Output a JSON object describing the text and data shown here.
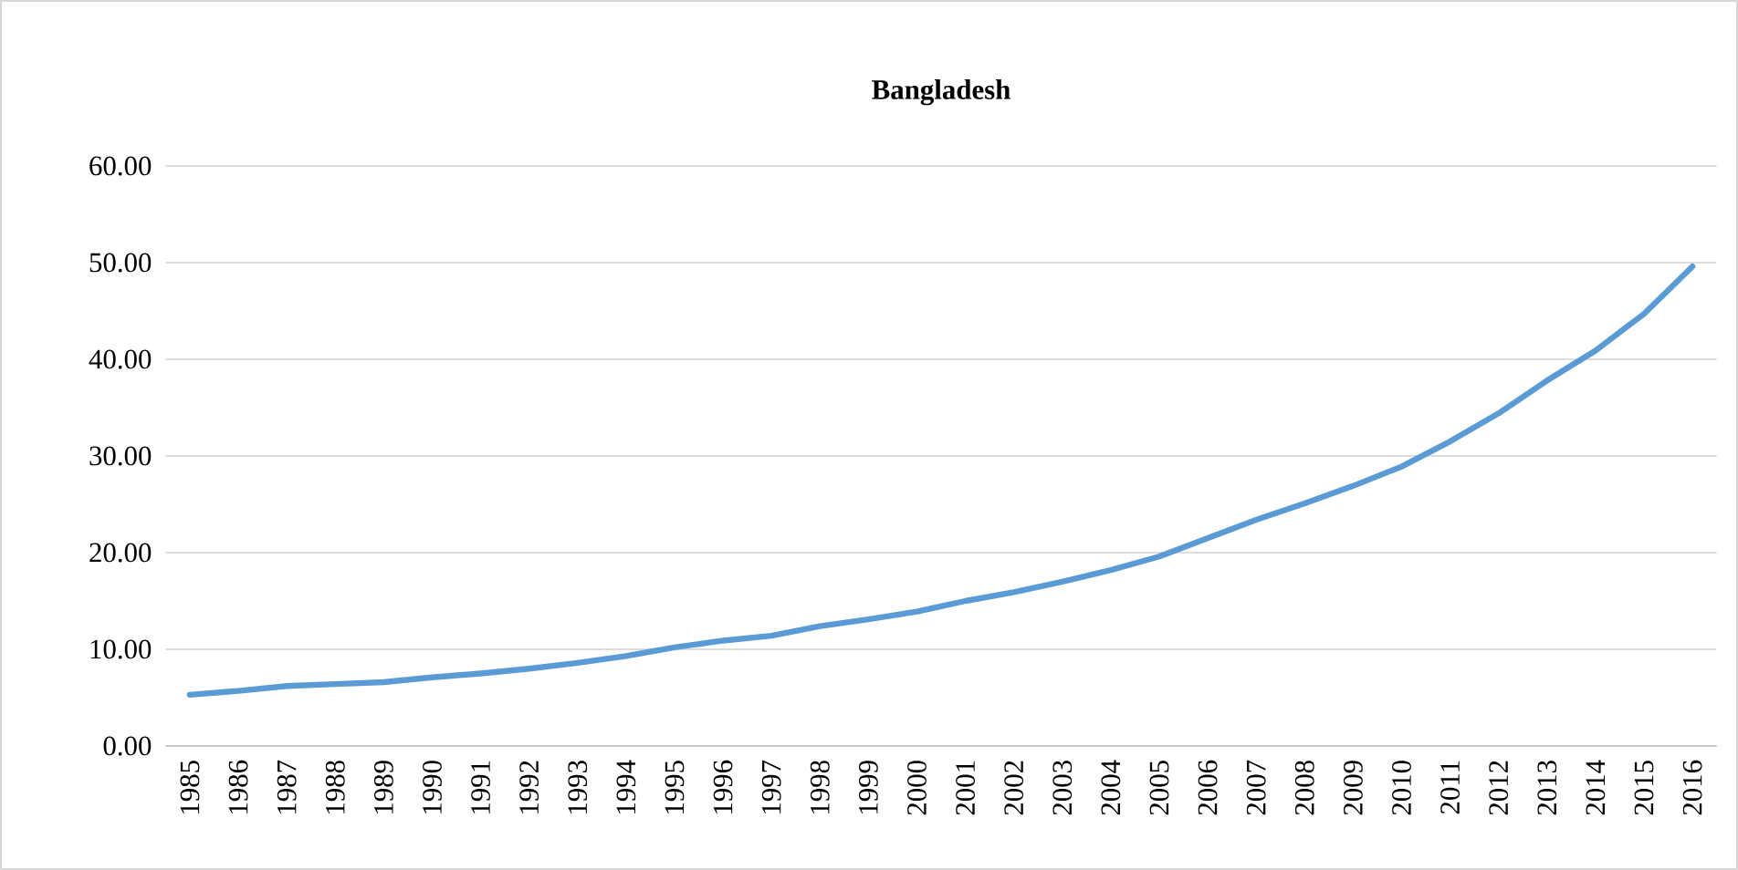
{
  "chart_data": {
    "type": "line",
    "title": "Bangladesh",
    "categories": [
      "1985",
      "1986",
      "1987",
      "1988",
      "1989",
      "1990",
      "1991",
      "1992",
      "1993",
      "1994",
      "1995",
      "1996",
      "1997",
      "1998",
      "1999",
      "2000",
      "2001",
      "2002",
      "2003",
      "2004",
      "2005",
      "2006",
      "2007",
      "2008",
      "2009",
      "2010",
      "2011",
      "2012",
      "2013",
      "2014",
      "2015",
      "2016"
    ],
    "series": [
      {
        "color": "#5b9bd5",
        "values": [
          5.3,
          5.7,
          6.2,
          6.4,
          6.6,
          7.1,
          7.5,
          8.0,
          8.6,
          9.3,
          10.2,
          10.9,
          11.4,
          12.4,
          13.1,
          13.9,
          15.0,
          15.9,
          17.0,
          18.2,
          19.6,
          21.5,
          23.4,
          25.1,
          26.9,
          28.9,
          31.5,
          34.4,
          37.8,
          40.9,
          44.7,
          49.6
        ]
      }
    ],
    "ylim": [
      0,
      60
    ],
    "yticks": [
      {
        "value": 0,
        "label": "0.00"
      },
      {
        "value": 10,
        "label": "10.00"
      },
      {
        "value": 20,
        "label": "20.00"
      },
      {
        "value": 30,
        "label": "30.00"
      },
      {
        "value": 40,
        "label": "40.00"
      },
      {
        "value": 50,
        "label": "50.00"
      },
      {
        "value": 60,
        "label": "60.00"
      }
    ],
    "grid": "y",
    "marker": "none",
    "line_style": "solid"
  }
}
